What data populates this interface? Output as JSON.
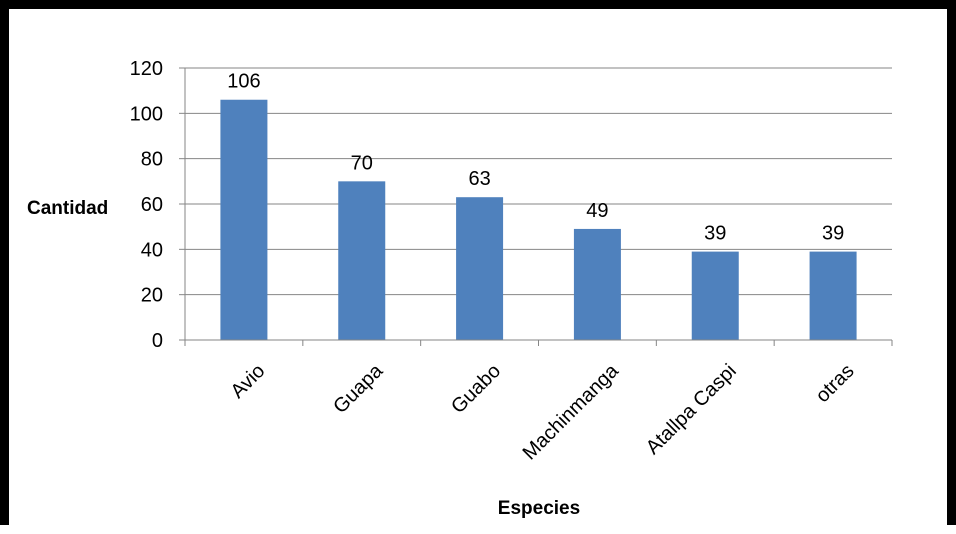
{
  "chart_data": {
    "type": "bar",
    "categories": [
      "Avio",
      "Guapa",
      "Guabo",
      "Machinmanga",
      "Atallpa Caspi",
      "otras"
    ],
    "values": [
      106,
      70,
      63,
      49,
      39,
      39
    ],
    "data_labels": [
      "106",
      "70",
      "63",
      "49",
      "39",
      "39"
    ],
    "title": "",
    "xlabel": "Especies",
    "ylabel": "Cantidad",
    "ylim": [
      0,
      120
    ],
    "yticks": [
      0,
      20,
      40,
      60,
      80,
      100,
      120
    ],
    "grid": true,
    "legend": "none",
    "bar_color": "#4F81BD"
  }
}
